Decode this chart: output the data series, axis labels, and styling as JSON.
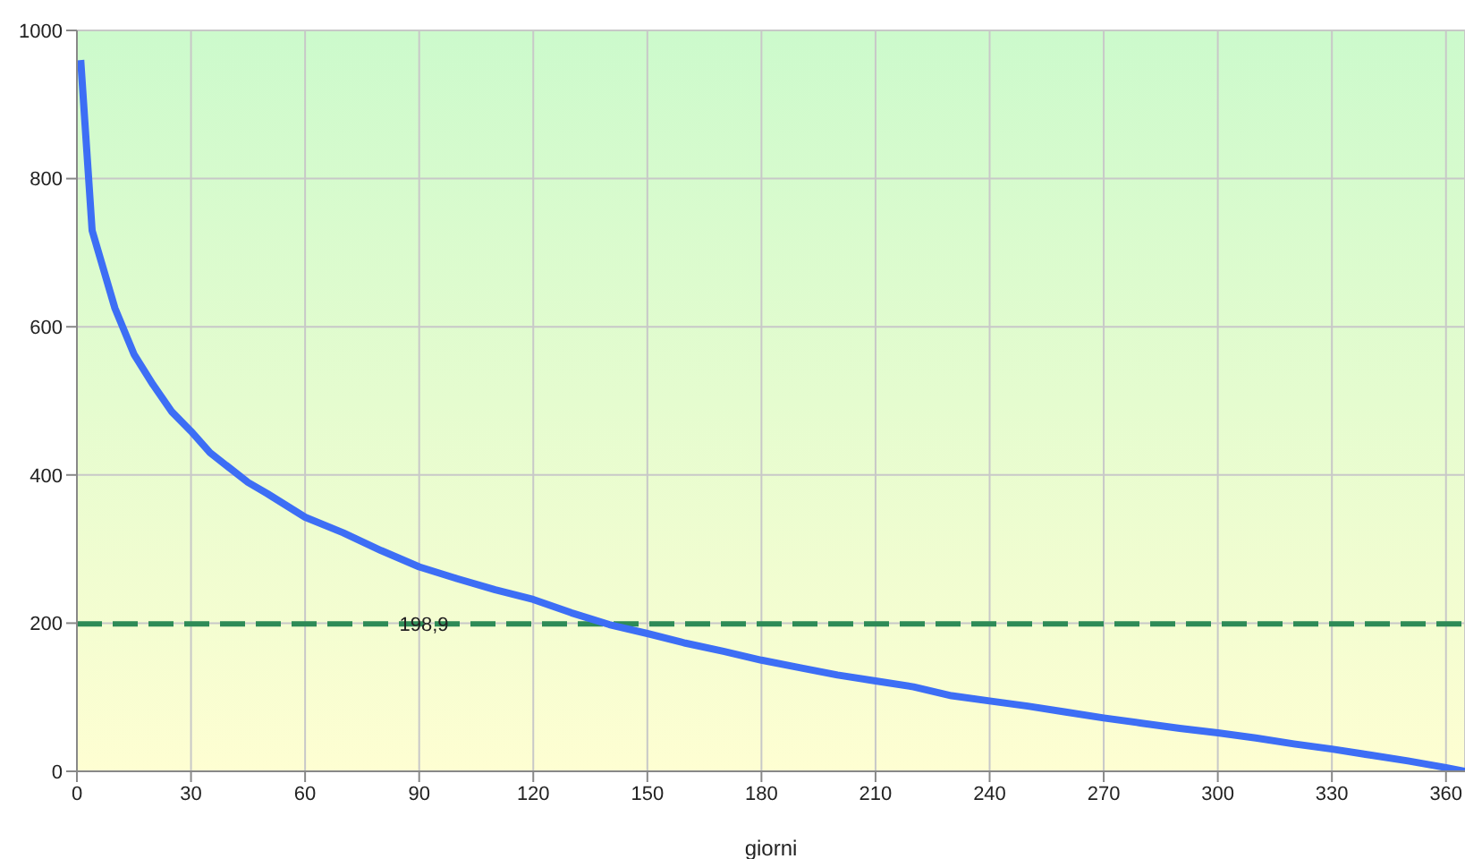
{
  "chart_data": {
    "type": "line",
    "xlabel": "giorni",
    "x": [
      1,
      4,
      10,
      15,
      20,
      25,
      30,
      35,
      40,
      45,
      50,
      60,
      70,
      80,
      90,
      100,
      110,
      120,
      130,
      140,
      150,
      160,
      170,
      180,
      190,
      200,
      210,
      220,
      230,
      240,
      250,
      260,
      270,
      280,
      290,
      300,
      310,
      320,
      330,
      340,
      350,
      360,
      365
    ],
    "series": [
      {
        "color": "#3d6ef5",
        "values": [
          960,
          730,
          625,
          563,
          522,
          485,
          459,
          430,
          410,
          390,
          375,
          343,
          322,
          298,
          276,
          260,
          245,
          232,
          214,
          198,
          186,
          173,
          162,
          150,
          140,
          130,
          122,
          114,
          102,
          95,
          88,
          80,
          72,
          65,
          58,
          52,
          45,
          37,
          30,
          22,
          14,
          5,
          0
        ]
      }
    ],
    "xlim": [
      0,
      365
    ],
    "xticks": [
      0,
      30,
      60,
      90,
      120,
      150,
      180,
      210,
      240,
      270,
      300,
      330,
      360
    ],
    "ylim": [
      0,
      1000
    ],
    "yticks": [
      0,
      200,
      400,
      600,
      800,
      1000
    ],
    "grid": true,
    "legend": false,
    "marker": "none",
    "line_style": "solid",
    "ref_lines": [
      {
        "axis": "y",
        "value": 198.9,
        "label": "198,9",
        "color": "#2e8b57",
        "line_style": "dashed"
      }
    ]
  }
}
